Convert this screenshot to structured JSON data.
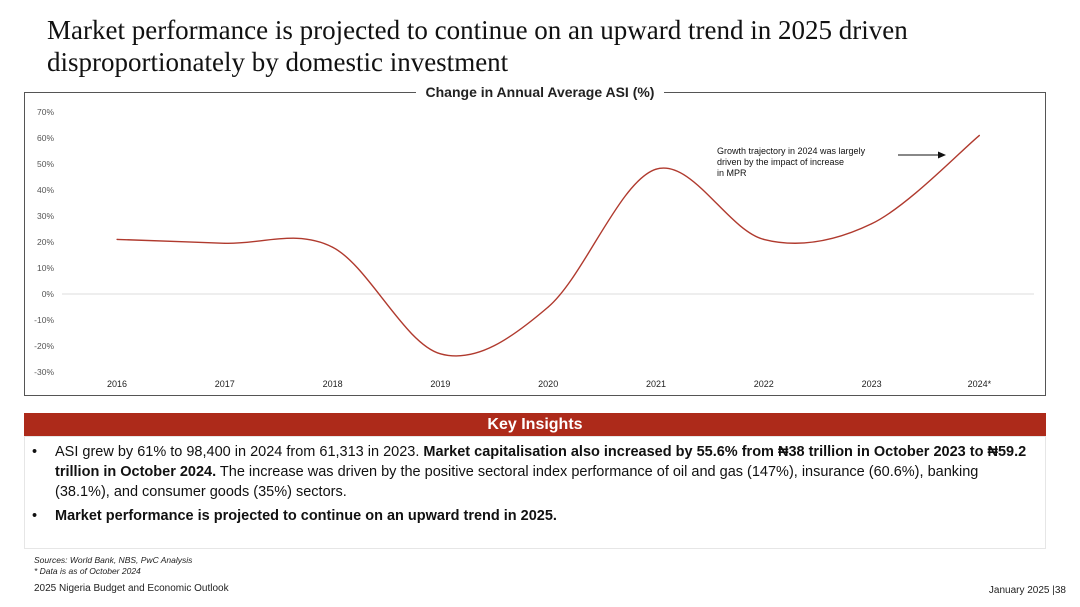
{
  "slide": {
    "title": "Market performance is projected to continue on an upward trend in 2025 driven disproportionately by domestic investment"
  },
  "chart_data": {
    "type": "line",
    "title": "Change in Annual Average ASI (%)",
    "categories": [
      "2016",
      "2017",
      "2018",
      "2019",
      "2020",
      "2021",
      "2022",
      "2023",
      "2024*"
    ],
    "series": [
      {
        "name": "Change in Annual Average ASI (%)",
        "values": [
          21,
          19.5,
          18,
          -23,
          -5,
          48,
          21,
          27,
          61
        ]
      }
    ],
    "y_ticks": [
      70,
      60,
      50,
      40,
      30,
      20,
      10,
      0,
      -10,
      -20,
      -30
    ],
    "y_tick_labels": [
      "70%",
      "60%",
      "50%",
      "40%",
      "30%",
      "20%",
      "10%",
      "0%",
      "-10%",
      "-20%",
      "-30%"
    ],
    "ylim": [
      -30,
      70
    ],
    "annotation": "Growth trajectory in 2024 was largely driven by the impact of increase in MPR",
    "line_color": "#b03a2e"
  },
  "insights": {
    "header": "Key Insights",
    "bullet_symbol": "•",
    "b1_part1": "ASI grew by 61% to 98,400 in 2024 from 61,313 in 2023. ",
    "b1_bold": "Market capitalisation also increased by 55.6% from ₦38 trillion in October 2023 to ₦59.2 trillion in October 2024.",
    "b1_part2": " The increase was driven by the positive sectoral index performance of oil and gas (147%), insurance (60.6%), banking (38.1%), and consumer goods (35%) sectors.",
    "b2": "Market performance is projected to continue on an upward trend in 2025."
  },
  "footer": {
    "sources": "Sources: World Bank, NBS, PwC Analysis",
    "note": "* Data is as of October 2024",
    "publication": "2025 Nigeria Budget and Economic Outlook",
    "date_page": "January 2025 |38"
  }
}
